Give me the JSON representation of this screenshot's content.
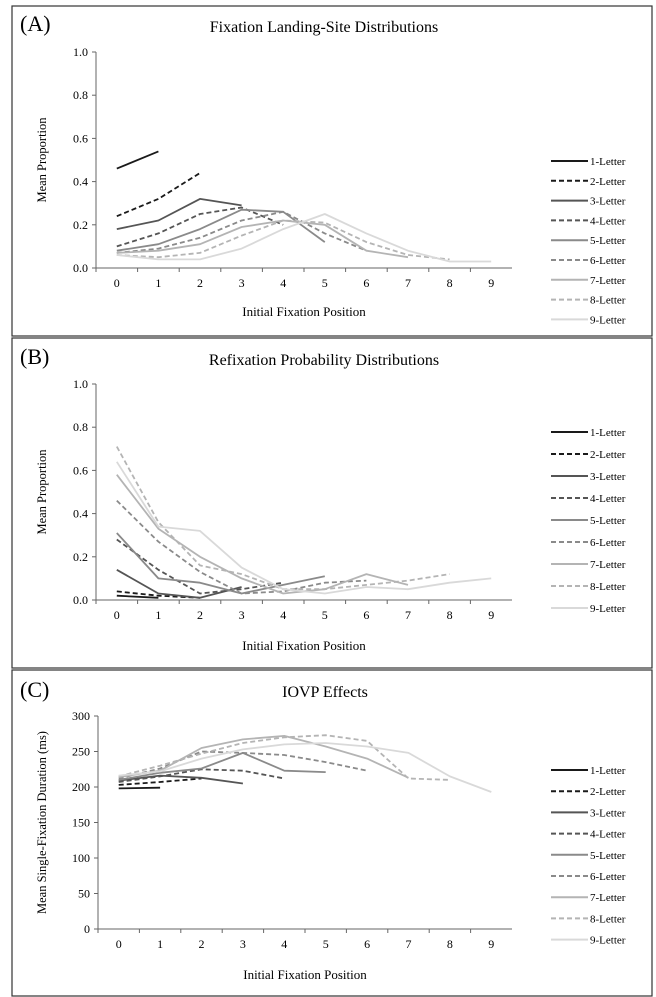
{
  "chart_data": [
    {
      "panel_label": "(A)",
      "type": "line",
      "title": "Fixation Landing-Site Distributions",
      "xlabel": "Initial Fixation Position",
      "ylabel": "Mean Proportion",
      "x_ticks": [
        0,
        1,
        2,
        3,
        4,
        5,
        6,
        7,
        8,
        9
      ],
      "y_ticks": [
        "0.0",
        "0.2",
        "0.4",
        "0.6",
        "0.8",
        "1.0"
      ],
      "ylim": [
        0,
        1.0
      ],
      "legend_position": "right",
      "series": [
        {
          "name": "1-Letter",
          "x": [
            0,
            1
          ],
          "values": [
            0.46,
            0.54
          ]
        },
        {
          "name": "2-Letter",
          "x": [
            0,
            1,
            2
          ],
          "values": [
            0.24,
            0.32,
            0.44
          ]
        },
        {
          "name": "3-Letter",
          "x": [
            0,
            1,
            2,
            3
          ],
          "values": [
            0.18,
            0.22,
            0.32,
            0.29
          ]
        },
        {
          "name": "4-Letter",
          "x": [
            0,
            1,
            2,
            3,
            4
          ],
          "values": [
            0.1,
            0.16,
            0.25,
            0.28,
            0.2
          ]
        },
        {
          "name": "5-Letter",
          "x": [
            0,
            1,
            2,
            3,
            4,
            5
          ],
          "values": [
            0.08,
            0.11,
            0.18,
            0.27,
            0.26,
            0.12
          ]
        },
        {
          "name": "6-Letter",
          "x": [
            0,
            1,
            2,
            3,
            4,
            5,
            6
          ],
          "values": [
            0.07,
            0.09,
            0.14,
            0.22,
            0.26,
            0.16,
            0.08
          ]
        },
        {
          "name": "7-Letter",
          "x": [
            0,
            1,
            2,
            3,
            4,
            5,
            6,
            7
          ],
          "values": [
            0.07,
            0.08,
            0.11,
            0.19,
            0.22,
            0.2,
            0.08,
            0.05
          ]
        },
        {
          "name": "8-Letter",
          "x": [
            0,
            1,
            2,
            3,
            4,
            5,
            6,
            7,
            8
          ],
          "values": [
            0.06,
            0.05,
            0.07,
            0.15,
            0.22,
            0.21,
            0.12,
            0.06,
            0.04
          ]
        },
        {
          "name": "9-Letter",
          "x": [
            0,
            1,
            2,
            3,
            4,
            5,
            6,
            7,
            8,
            9
          ],
          "values": [
            0.06,
            0.04,
            0.04,
            0.09,
            0.18,
            0.25,
            0.16,
            0.08,
            0.03,
            0.03
          ]
        }
      ]
    },
    {
      "panel_label": "(B)",
      "type": "line",
      "title": "Refixation Probability Distributions",
      "xlabel": "Initial Fixation Position",
      "ylabel": "Mean Proportion",
      "x_ticks": [
        0,
        1,
        2,
        3,
        4,
        5,
        6,
        7,
        8,
        9
      ],
      "y_ticks": [
        "0.0",
        "0.2",
        "0.4",
        "0.6",
        "0.8",
        "1.0"
      ],
      "ylim": [
        0,
        1.0
      ],
      "legend_position": "right",
      "series": [
        {
          "name": "1-Letter",
          "x": [
            0,
            1
          ],
          "values": [
            0.02,
            0.01
          ]
        },
        {
          "name": "2-Letter",
          "x": [
            0,
            1,
            2
          ],
          "values": [
            0.04,
            0.02,
            0.01
          ]
        },
        {
          "name": "3-Letter",
          "x": [
            0,
            1,
            2,
            3
          ],
          "values": [
            0.14,
            0.03,
            0.01,
            0.06
          ]
        },
        {
          "name": "4-Letter",
          "x": [
            0,
            1,
            2,
            3,
            4
          ],
          "values": [
            0.28,
            0.14,
            0.03,
            0.05,
            0.08
          ]
        },
        {
          "name": "5-Letter",
          "x": [
            0,
            1,
            2,
            3,
            4,
            5
          ],
          "values": [
            0.31,
            0.1,
            0.08,
            0.03,
            0.07,
            0.11
          ]
        },
        {
          "name": "6-Letter",
          "x": [
            0,
            1,
            2,
            3,
            4,
            5,
            6
          ],
          "values": [
            0.46,
            0.27,
            0.13,
            0.03,
            0.04,
            0.08,
            0.09
          ]
        },
        {
          "name": "7-Letter",
          "x": [
            0,
            1,
            2,
            3,
            4,
            5,
            6,
            7
          ],
          "values": [
            0.58,
            0.33,
            0.2,
            0.1,
            0.03,
            0.05,
            0.12,
            0.07
          ]
        },
        {
          "name": "8-Letter",
          "x": [
            0,
            1,
            2,
            3,
            4,
            5,
            6,
            7,
            8
          ],
          "values": [
            0.71,
            0.36,
            0.16,
            0.12,
            0.05,
            0.05,
            0.07,
            0.09,
            0.12
          ]
        },
        {
          "name": "9-Letter",
          "x": [
            0,
            1,
            2,
            3,
            4,
            5,
            6,
            7,
            8,
            9
          ],
          "values": [
            0.64,
            0.34,
            0.32,
            0.15,
            0.05,
            0.03,
            0.06,
            0.05,
            0.08,
            0.1
          ]
        }
      ]
    },
    {
      "panel_label": "(C)",
      "type": "line",
      "title": "IOVP Effects",
      "xlabel": "Initial Fixation Position",
      "ylabel": "Mean Single-Fixation Duration (ms)",
      "x_ticks": [
        0,
        1,
        2,
        3,
        4,
        5,
        6,
        7,
        8,
        9
      ],
      "y_ticks": [
        "0",
        "50",
        "100",
        "150",
        "200",
        "250",
        "300"
      ],
      "ylim": [
        0,
        300
      ],
      "legend_position": "right",
      "series": [
        {
          "name": "1-Letter",
          "x": [
            0,
            1
          ],
          "values": [
            198,
            199
          ]
        },
        {
          "name": "2-Letter",
          "x": [
            0,
            1,
            2
          ],
          "values": [
            203,
            207,
            212
          ]
        },
        {
          "name": "3-Letter",
          "x": [
            0,
            1,
            2,
            3
          ],
          "values": [
            209,
            216,
            213,
            205
          ]
        },
        {
          "name": "4-Letter",
          "x": [
            0,
            1,
            2,
            3,
            4
          ],
          "values": [
            207,
            215,
            225,
            223,
            212
          ]
        },
        {
          "name": "5-Letter",
          "x": [
            0,
            1,
            2,
            3,
            4,
            5
          ],
          "values": [
            210,
            220,
            226,
            248,
            223,
            221
          ]
        },
        {
          "name": "6-Letter",
          "x": [
            0,
            1,
            2,
            3,
            4,
            5,
            6
          ],
          "values": [
            212,
            226,
            250,
            248,
            245,
            235,
            223
          ]
        },
        {
          "name": "7-Letter",
          "x": [
            0,
            1,
            2,
            3,
            4,
            5,
            6,
            7
          ],
          "values": [
            214,
            223,
            255,
            267,
            272,
            257,
            240,
            213
          ]
        },
        {
          "name": "8-Letter",
          "x": [
            0,
            1,
            2,
            3,
            4,
            5,
            6,
            7,
            8
          ],
          "values": [
            215,
            230,
            247,
            262,
            270,
            273,
            265,
            212,
            210
          ]
        },
        {
          "name": "9-Letter",
          "x": [
            0,
            1,
            2,
            3,
            4,
            5,
            6,
            7,
            8,
            9
          ],
          "values": [
            216,
            222,
            240,
            253,
            260,
            262,
            257,
            248,
            215,
            193
          ]
        }
      ]
    }
  ],
  "series_styles": [
    {
      "color": "#1a1a1a",
      "dash": "none"
    },
    {
      "color": "#1a1a1a",
      "dash": "dashed"
    },
    {
      "color": "#555555",
      "dash": "none"
    },
    {
      "color": "#555555",
      "dash": "dashed"
    },
    {
      "color": "#8a8a8a",
      "dash": "none"
    },
    {
      "color": "#8a8a8a",
      "dash": "dashed"
    },
    {
      "color": "#b4b4b4",
      "dash": "none"
    },
    {
      "color": "#b4b4b4",
      "dash": "dashed"
    },
    {
      "color": "#d9d9d9",
      "dash": "none"
    }
  ]
}
